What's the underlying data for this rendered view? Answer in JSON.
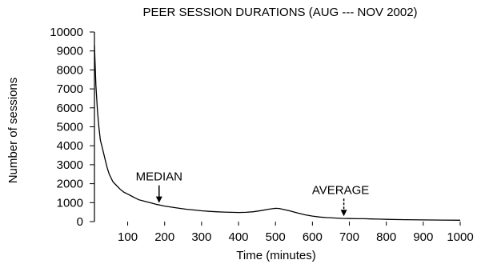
{
  "chart_data": {
    "type": "line",
    "title": "PEER SESSION DURATIONS (AUG --- NOV 2002)",
    "xlabel": "Time (minutes)",
    "ylabel": "Number of sessions",
    "xlim": [
      10,
      1000
    ],
    "ylim": [
      0,
      10000
    ],
    "x_ticks": [
      100,
      200,
      300,
      400,
      500,
      600,
      700,
      800,
      900,
      1000
    ],
    "y_ticks": [
      0,
      1000,
      2000,
      3000,
      4000,
      5000,
      6000,
      7000,
      8000,
      9000,
      10000
    ],
    "grid": false,
    "series": [
      {
        "line_color": "#000000",
        "x": [
          10,
          14,
          18,
          22,
          26,
          30,
          35,
          40,
          45,
          50,
          55,
          60,
          70,
          80,
          90,
          100,
          110,
          120,
          130,
          140,
          150,
          160,
          170,
          180,
          190,
          200,
          220,
          240,
          260,
          280,
          300,
          320,
          340,
          360,
          380,
          400,
          420,
          440,
          460,
          480,
          500,
          510,
          520,
          540,
          560,
          580,
          600,
          620,
          640,
          660,
          680,
          700,
          720,
          740,
          760,
          780,
          800,
          850,
          900,
          950,
          1000
        ],
        "y": [
          9300,
          7200,
          5900,
          5000,
          4300,
          4000,
          3600,
          3200,
          2800,
          2500,
          2300,
          2100,
          1900,
          1700,
          1550,
          1450,
          1350,
          1250,
          1150,
          1100,
          1050,
          1000,
          950,
          900,
          860,
          820,
          760,
          700,
          650,
          610,
          570,
          540,
          520,
          500,
          490,
          480,
          490,
          520,
          580,
          650,
          700,
          690,
          650,
          560,
          450,
          360,
          290,
          240,
          210,
          190,
          170,
          160,
          150,
          150,
          140,
          130,
          120,
          100,
          90,
          80,
          70
        ]
      }
    ],
    "annotations": [
      {
        "text": "MEDIAN",
        "x": 185,
        "y": 900
      },
      {
        "text": "AVERAGE",
        "x": 685,
        "y": 200
      }
    ]
  }
}
